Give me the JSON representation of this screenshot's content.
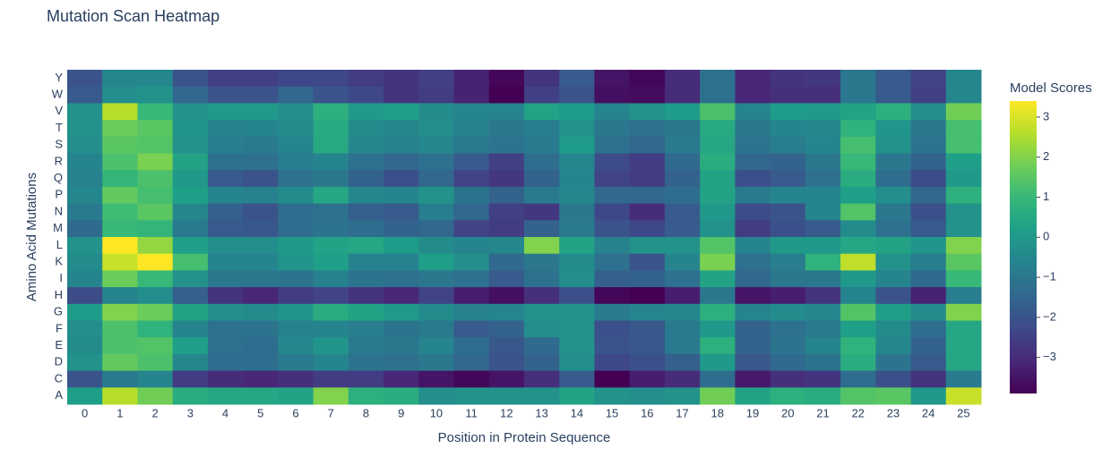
{
  "chart_data": {
    "type": "heatmap",
    "title": "Mutation Scan Heatmap",
    "x_label": "Position in Protein Sequence",
    "y_label": "Amino Acid Mutations",
    "colorbar_title": "Model Scores",
    "colorscale": "Viridis",
    "x": [
      "0",
      "1",
      "2",
      "3",
      "4",
      "5",
      "6",
      "7",
      "8",
      "9",
      "10",
      "11",
      "12",
      "13",
      "14",
      "15",
      "16",
      "17",
      "18",
      "19",
      "20",
      "21",
      "22",
      "23",
      "24",
      "25"
    ],
    "y": [
      "Y",
      "W",
      "V",
      "T",
      "S",
      "R",
      "Q",
      "P",
      "N",
      "M",
      "L",
      "K",
      "I",
      "H",
      "G",
      "F",
      "E",
      "D",
      "C",
      "A"
    ],
    "z": [
      [
        -2,
        -0.5,
        -0.5,
        -2,
        -2.5,
        -2.5,
        -2.3,
        -2.3,
        -2.6,
        -2.8,
        -2.5,
        -3.2,
        -3.8,
        -2.8,
        -1.8,
        -3.5,
        -3.8,
        -3,
        -1.2,
        -3.1,
        -2.8,
        -2.7,
        -1,
        -1.8,
        -2.4,
        -0.5
      ],
      [
        -1.8,
        -0.3,
        -0.2,
        -1.5,
        -2,
        -2,
        -1.5,
        -2,
        -2.3,
        -2.8,
        -2.6,
        -3.2,
        -3.9,
        -2.5,
        -2,
        -3.6,
        -3.7,
        -3,
        -1.2,
        -3.1,
        -2.9,
        -2.9,
        -1,
        -1.8,
        -2.5,
        -0.5
      ],
      [
        -0.2,
        2.6,
        1,
        -0.2,
        0,
        0,
        -0.3,
        0.7,
        0,
        0.2,
        -0.4,
        -0.6,
        -0.6,
        0.3,
        0.1,
        -0.6,
        -0.2,
        0.1,
        1.3,
        -0.6,
        0.1,
        0,
        0.3,
        0.7,
        -0.3,
        1.8
      ],
      [
        -0.2,
        1.7,
        1.5,
        -0.1,
        -0.7,
        -0.6,
        -0.4,
        0.5,
        -0.4,
        -0.5,
        -0.3,
        -0.7,
        -1,
        -0.8,
        -0.2,
        -1,
        -1.2,
        -1,
        0.5,
        -1,
        -0.6,
        -0.5,
        0.8,
        -0.1,
        -1,
        1.2
      ],
      [
        -0.3,
        1.5,
        1.4,
        -0.2,
        -0.8,
        -0.9,
        -0.6,
        0.5,
        -0.5,
        -0.7,
        -0.5,
        -0.9,
        -1.1,
        -0.9,
        0.1,
        -1.2,
        -1.5,
        -0.9,
        0.4,
        -1.1,
        -0.8,
        -0.6,
        1.2,
        -0.2,
        -1.1,
        1.2
      ],
      [
        -0.6,
        1.3,
        1.9,
        0.3,
        -1.2,
        -1.2,
        -0.8,
        -0.6,
        -1.2,
        -1.5,
        -1.2,
        -1.8,
        -2.5,
        -1.3,
        -0.5,
        -2.2,
        -2.6,
        -1.4,
        0.6,
        -1.5,
        -1.6,
        -1,
        1,
        -1,
        -1.6,
        0.2
      ],
      [
        -0.7,
        0.9,
        1.3,
        0,
        -1.8,
        -2,
        -1.2,
        -1,
        -1.6,
        -2.1,
        -1.5,
        -2.4,
        -2.7,
        -1.6,
        -0.6,
        -2.4,
        -2.6,
        -1.6,
        0.3,
        -2.1,
        -1.8,
        -1.2,
        0.6,
        -1.3,
        -2.2,
        0
      ],
      [
        -0.5,
        1.6,
        1.2,
        0.2,
        -0.6,
        -0.7,
        -0.4,
        0.4,
        -0.5,
        -0.6,
        -0.2,
        -1.1,
        -1.6,
        -0.9,
        -0.5,
        -1.5,
        -1.5,
        -1.3,
        0.3,
        -0.9,
        -0.6,
        -0.6,
        0.2,
        -0.3,
        -1.5,
        0.7
      ],
      [
        -0.9,
        1.1,
        1.5,
        -0.5,
        -1.7,
        -2,
        -1.3,
        -1.2,
        -1.7,
        -1.8,
        -0.8,
        -1.5,
        -2.5,
        -2.7,
        -1,
        -2.3,
        -3,
        -1.8,
        0,
        -2.2,
        -2,
        -0.6,
        1.4,
        -1,
        -2.1,
        -0.2
      ],
      [
        -1.4,
        1,
        0.9,
        -0.9,
        -1.8,
        -1.9,
        -1.3,
        -1.1,
        -1.3,
        -1.6,
        -1.5,
        -2.4,
        -2.6,
        -1.6,
        -0.9,
        -2,
        -2.3,
        -1.8,
        -0.2,
        -2.6,
        -2.1,
        -1.8,
        -0.4,
        -1.2,
        -1.8,
        -0.2
      ],
      [
        -0.2,
        3.4,
        2.2,
        0.2,
        -0.3,
        -0.3,
        0,
        0.3,
        0.4,
        0.1,
        -0.4,
        -0.6,
        -0.5,
        2,
        0.3,
        -0.7,
        -0.2,
        -0.2,
        1.4,
        -0.6,
        0,
        0,
        0.4,
        0.3,
        -0.1,
        2
      ],
      [
        -0.4,
        2.8,
        3.4,
        1.2,
        -0.6,
        -0.6,
        -0.1,
        0.2,
        -0.7,
        -0.7,
        0.2,
        -0.3,
        -1.4,
        -1,
        -0.4,
        -1.2,
        -2,
        -0.6,
        1.9,
        -1.2,
        -0.8,
        0.8,
        2.7,
        -0.2,
        -0.8,
        1.5
      ],
      [
        -0.6,
        1.7,
        1,
        -0.2,
        -1,
        -1,
        -1.1,
        -0.7,
        -1.1,
        -1.2,
        -1,
        -1.2,
        -1.8,
        -1.2,
        -0.3,
        -1.7,
        -1.6,
        -1.2,
        0.3,
        -1.5,
        -1,
        -1,
        0,
        -0.6,
        -1.4,
        1
      ],
      [
        -2.2,
        -0.6,
        -0.3,
        -1.7,
        -2.8,
        -3.1,
        -2.6,
        -2.4,
        -2.8,
        -3.1,
        -2.4,
        -3.3,
        -3.6,
        -2.9,
        -2.1,
        -3.8,
        -3.9,
        -3.3,
        -1,
        -3.5,
        -3.3,
        -2.8,
        -0.6,
        -2,
        -3.2,
        -0.8
      ],
      [
        0.1,
        2,
        1.7,
        0.3,
        -0.3,
        -0.4,
        -0.1,
        0.6,
        0.3,
        0,
        -0.4,
        -0.7,
        -0.6,
        -0.2,
        -0.2,
        -0.9,
        -0.6,
        -0.5,
        0.7,
        -0.6,
        -0.4,
        -0.5,
        1.4,
        0.2,
        -0.4,
        2
      ],
      [
        -0.3,
        1.3,
        0.8,
        -0.6,
        -1.2,
        -1.1,
        -0.7,
        -0.6,
        -0.8,
        -1.1,
        -0.9,
        -1.8,
        -1.6,
        -0.3,
        -0.2,
        -2.1,
        -1.9,
        -0.9,
        0,
        -1.6,
        -1.2,
        -0.9,
        0.2,
        -0.4,
        -1.3,
        0.4
      ],
      [
        -0.4,
        1.3,
        1.4,
        0.2,
        -1.2,
        -1.3,
        -0.5,
        -0.1,
        -0.9,
        -1,
        -0.6,
        -1.3,
        -1.9,
        -1.4,
        -0.2,
        -2,
        -1.9,
        -0.9,
        0.7,
        -1.6,
        -1.1,
        -0.6,
        0.8,
        -0.5,
        -1.6,
        0.4
      ],
      [
        -0.2,
        1.6,
        1.3,
        -0.5,
        -1.3,
        -1.3,
        -0.9,
        -0.6,
        -1.1,
        -1.2,
        -1,
        -1.5,
        -2,
        -1.6,
        -0.3,
        -2.3,
        -2.1,
        -1.7,
        0,
        -1.9,
        -1.4,
        -1.1,
        0.6,
        -1.1,
        -1.8,
        0.4
      ],
      [
        -2,
        -0.9,
        -0.6,
        -2.6,
        -3,
        -3.1,
        -2.9,
        -2.6,
        -2.6,
        -3.1,
        -3.5,
        -3.8,
        -3.5,
        -2.9,
        -1.8,
        -3.9,
        -3.3,
        -3,
        -1.3,
        -3.4,
        -2.9,
        -2.8,
        -1.3,
        -2.1,
        -2.8,
        -0.9
      ],
      [
        0.2,
        2.6,
        1.8,
        0.6,
        0.4,
        0.4,
        0.3,
        2,
        0.7,
        0.6,
        -0.3,
        -0.2,
        -0.2,
        -0.2,
        0.3,
        -0.2,
        -0.3,
        -0.2,
        1.8,
        0.3,
        0.7,
        0.6,
        1.4,
        1.5,
        0,
        2.8
      ]
    ],
    "zlim": [
      -3.9,
      3.4
    ],
    "zticks": [
      {
        "value": -3,
        "label": "−3"
      },
      {
        "value": -2,
        "label": "−2"
      },
      {
        "value": -1,
        "label": "−1"
      },
      0,
      1,
      2,
      3
    ]
  }
}
